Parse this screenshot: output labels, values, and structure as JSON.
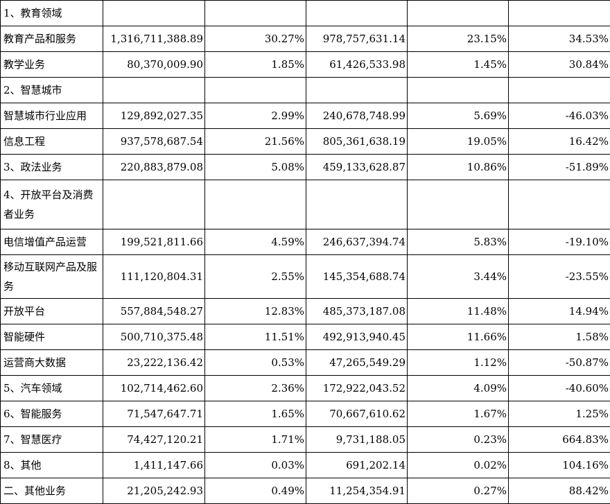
{
  "rows": [
    {
      "label": "1、教育领域",
      "c1": "",
      "c2": "",
      "c3": "",
      "c4": "",
      "c5": ""
    },
    {
      "label": "教育产品和服务",
      "c1": "1,316,711,388.89",
      "c2": "30.27%",
      "c3": "978,757,631.14",
      "c4": "23.15%",
      "c5": "34.53%"
    },
    {
      "label": "教学业务",
      "c1": "80,370,009.90",
      "c2": "1.85%",
      "c3": "61,426,533.98",
      "c4": "1.45%",
      "c5": "30.84%"
    },
    {
      "label": "2、智慧城市",
      "c1": "",
      "c2": "",
      "c3": "",
      "c4": "",
      "c5": ""
    },
    {
      "label": "智慧城市行业应用",
      "c1": "129,892,027.35",
      "c2": "2.99%",
      "c3": "240,678,748.99",
      "c4": "5.69%",
      "c5": "-46.03%"
    },
    {
      "label": "信息工程",
      "c1": "937,578,687.54",
      "c2": "21.56%",
      "c3": "805,361,638.19",
      "c4": "19.05%",
      "c5": "16.42%"
    },
    {
      "label": "3、政法业务",
      "c1": "220,883,879.08",
      "c2": "5.08%",
      "c3": "459,133,628.87",
      "c4": "10.86%",
      "c5": "-51.89%"
    },
    {
      "label": "4、开放平台及消费者业务",
      "c1": "",
      "c2": "",
      "c3": "",
      "c4": "",
      "c5": ""
    },
    {
      "label": "电信增值产品运营",
      "c1": "199,521,811.66",
      "c2": "4.59%",
      "c3": "246,637,394.74",
      "c4": "5.83%",
      "c5": "-19.10%"
    },
    {
      "label": "移动互联网产品及服务",
      "c1": "111,120,804.31",
      "c2": "2.55%",
      "c3": "145,354,688.74",
      "c4": "3.44%",
      "c5": "-23.55%"
    },
    {
      "label": "开放平台",
      "c1": "557,884,548.27",
      "c2": "12.83%",
      "c3": "485,373,187.08",
      "c4": "11.48%",
      "c5": "14.94%"
    },
    {
      "label": "智能硬件",
      "c1": "500,710,375.48",
      "c2": "11.51%",
      "c3": "492,913,940.45",
      "c4": "11.66%",
      "c5": "1.58%"
    },
    {
      "label": "运营商大数据",
      "c1": "23,222,136.42",
      "c2": "0.53%",
      "c3": "47,265,549.29",
      "c4": "1.12%",
      "c5": "-50.87%"
    },
    {
      "label": "5、汽车领域",
      "c1": "102,714,462.60",
      "c2": "2.36%",
      "c3": "172,922,043.52",
      "c4": "4.09%",
      "c5": "-40.60%"
    },
    {
      "label": "6、智能服务",
      "c1": "71,547,647.71",
      "c2": "1.65%",
      "c3": "70,667,610.62",
      "c4": "1.67%",
      "c5": "1.25%"
    },
    {
      "label": "7、智慧医疗",
      "c1": "74,427,120.21",
      "c2": "1.71%",
      "c3": "9,731,188.05",
      "c4": "0.23%",
      "c5": "664.83%"
    },
    {
      "label": "8、其他",
      "c1": "1,411,147.66",
      "c2": "0.03%",
      "c3": "691,202.14",
      "c4": "0.02%",
      "c5": "104.16%"
    },
    {
      "label": "二、其他业务",
      "c1": "21,205,242.93",
      "c2": "0.49%",
      "c3": "11,254,354.91",
      "c4": "0.27%",
      "c5": "88.42%"
    }
  ]
}
